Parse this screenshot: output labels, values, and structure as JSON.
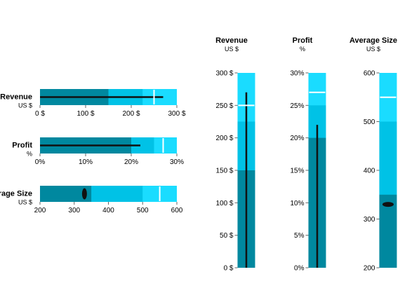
{
  "colors": {
    "band_dark": "#00889f",
    "band_mid": "#00c2e6",
    "band_light": "#1adcff",
    "measure": "#111111",
    "marker": "#ffffff"
  },
  "chart_data": [
    {
      "type": "bullet",
      "orientation": "horizontal",
      "bullets": [
        {
          "title": "Revenue",
          "subtitle": "US $",
          "range": [
            0,
            300
          ],
          "ticks": [
            "0 $",
            "100 $",
            "200 $",
            "300 $"
          ],
          "tick_values": [
            0,
            100,
            200,
            300
          ],
          "bands": [
            150,
            225,
            300
          ],
          "measure": 270,
          "measure_style": "line",
          "marker": 250
        },
        {
          "title": "Profit",
          "subtitle": "%",
          "range": [
            0,
            30
          ],
          "ticks": [
            "0%",
            "10%",
            "20%",
            "30%"
          ],
          "tick_values": [
            0,
            10,
            20,
            30
          ],
          "bands": [
            20,
            25,
            30
          ],
          "measure": 22,
          "measure_style": "line",
          "marker": 27
        },
        {
          "title": "Average Size",
          "subtitle": "US $",
          "range": [
            200,
            600
          ],
          "ticks": [
            "200",
            "300",
            "400",
            "500",
            "600"
          ],
          "tick_values": [
            200,
            300,
            400,
            500,
            600
          ],
          "bands": [
            350,
            500,
            600
          ],
          "measure": 330,
          "measure_style": "dot",
          "marker": 550
        }
      ]
    },
    {
      "type": "bullet",
      "orientation": "vertical",
      "bullets": [
        {
          "title": "Revenue",
          "subtitle": "US $",
          "range": [
            0,
            300
          ],
          "ticks": [
            "0 $",
            "50 $",
            "100 $",
            "150 $",
            "200 $",
            "250 $",
            "300 $"
          ],
          "tick_values": [
            0,
            50,
            100,
            150,
            200,
            250,
            300
          ],
          "bands": [
            150,
            225,
            300
          ],
          "measure": 270,
          "measure_style": "line",
          "marker": 250
        },
        {
          "title": "Profit",
          "subtitle": "%",
          "range": [
            0,
            30
          ],
          "ticks": [
            "0%",
            "5%",
            "10%",
            "15%",
            "20%",
            "25%",
            "30%"
          ],
          "tick_values": [
            0,
            5,
            10,
            15,
            20,
            25,
            30
          ],
          "bands": [
            20,
            25,
            30
          ],
          "measure": 22,
          "measure_style": "line",
          "marker": 27
        },
        {
          "title": "Average Size",
          "subtitle": "US $",
          "range": [
            200,
            600
          ],
          "ticks": [
            "200",
            "300",
            "400",
            "500",
            "600"
          ],
          "tick_values": [
            200,
            300,
            400,
            500,
            600
          ],
          "bands": [
            350,
            500,
            600
          ],
          "measure": 330,
          "measure_style": "dot",
          "marker": 550
        }
      ]
    }
  ]
}
